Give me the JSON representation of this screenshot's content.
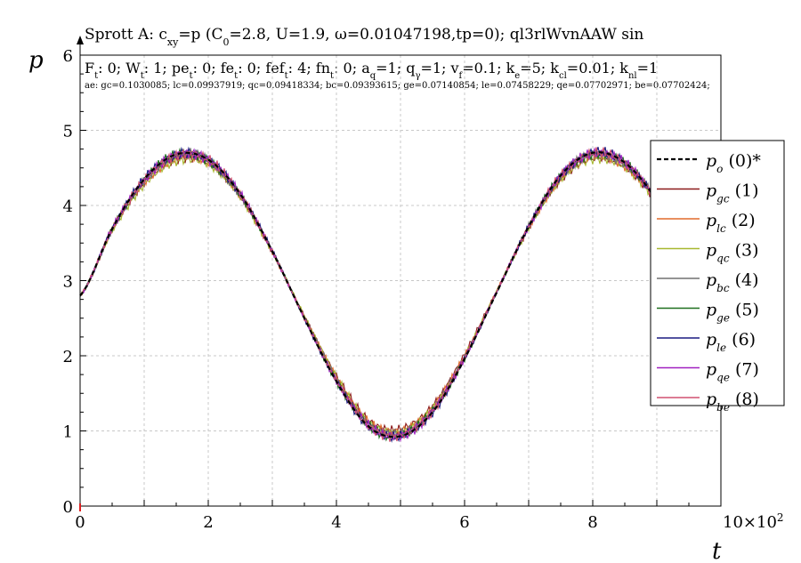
{
  "header": {
    "title": "Sprott A: c_xy=p (C_0=2.8, U=1.9, ω=0.01047198,tp=0); ql3rlWvnAAW sin",
    "params": "F_t: 0; W_t: 1; pe_t: 0; fe_t: 0; fef_t: 4; fn_t: 0; a_q=1; q_γ=1; v_f=0.1; k_e=5; k_cl=0.01; k_nl=1",
    "errors": "ae: gc=0.1030085; lc=0.09937919; qc=0.09418334; bc=0.09393615; ge=0.07140854; le=0.07458229; qe=0.07702971; be=0.07702424;"
  },
  "chart_data": {
    "type": "line",
    "xlabel": "t",
    "ylabel": "p",
    "x_multiplier": "10×10²",
    "xlim": [
      0,
      10
    ],
    "ylim": [
      0,
      6
    ],
    "x_ticks": [
      "0",
      "2",
      "4",
      "6",
      "8"
    ],
    "y_ticks": [
      "0",
      "1",
      "2",
      "3",
      "4",
      "5",
      "6"
    ],
    "grid": true,
    "legend_position": "right",
    "x": [
      0,
      0.5,
      1.0,
      1.5,
      2.0,
      2.5,
      3.0,
      3.5,
      4.0,
      4.5,
      5.0,
      5.5,
      6.0,
      6.5,
      7.0,
      7.5,
      8.0,
      8.5,
      9.0,
      9.5,
      10.0
    ],
    "series": [
      {
        "name": "p_o (0)*",
        "sub": "o",
        "label": "(0)*",
        "color": "#000000",
        "dashed": true,
        "width": 2.2,
        "values": [
          2.8,
          3.69,
          4.35,
          4.68,
          4.61,
          4.15,
          3.39,
          2.5,
          1.66,
          1.06,
          0.93,
          1.25,
          1.96,
          2.84,
          3.72,
          4.4,
          4.7,
          4.57,
          4.07,
          3.32,
          2.45
        ]
      },
      {
        "name": "p_gc (1)",
        "sub": "gc",
        "label": "(1)",
        "color": "#8b1a1a",
        "values": [
          2.8,
          3.67,
          4.3,
          4.62,
          4.57,
          4.12,
          3.38,
          2.53,
          1.73,
          1.14,
          1.02,
          1.33,
          2.02,
          2.86,
          3.7,
          4.35,
          4.63,
          4.52,
          4.05,
          3.32,
          2.48
        ]
      },
      {
        "name": "p_lc (2)",
        "sub": "lc",
        "label": "(2)",
        "color": "#e06a2c",
        "values": [
          2.8,
          3.67,
          4.31,
          4.63,
          4.58,
          4.13,
          3.38,
          2.52,
          1.71,
          1.12,
          1.0,
          1.31,
          2.0,
          2.86,
          3.71,
          4.36,
          4.65,
          4.53,
          4.06,
          3.32,
          2.47
        ]
      },
      {
        "name": "p_qc (3)",
        "sub": "qc",
        "label": "(3)",
        "color": "#a8b830",
        "values": [
          2.8,
          3.66,
          4.28,
          4.59,
          4.55,
          4.11,
          3.38,
          2.53,
          1.72,
          1.12,
          0.98,
          1.28,
          1.99,
          2.86,
          3.7,
          4.34,
          4.62,
          4.51,
          4.05,
          3.33,
          2.48
        ]
      },
      {
        "name": "p_bc (4)",
        "sub": "bc",
        "label": "(4)",
        "color": "#707070",
        "values": [
          2.8,
          3.68,
          4.33,
          4.66,
          4.6,
          4.14,
          3.39,
          2.51,
          1.69,
          1.09,
          0.96,
          1.28,
          1.98,
          2.85,
          3.72,
          4.39,
          4.68,
          4.56,
          4.07,
          3.32,
          2.46
        ]
      },
      {
        "name": "p_ge (5)",
        "sub": "ge",
        "label": "(5)",
        "color": "#1e6e1e",
        "values": [
          2.8,
          3.69,
          4.34,
          4.67,
          4.6,
          4.14,
          3.39,
          2.5,
          1.67,
          1.07,
          0.94,
          1.26,
          1.97,
          2.84,
          3.72,
          4.39,
          4.69,
          4.56,
          4.07,
          3.32,
          2.45
        ]
      },
      {
        "name": "p_le (6)",
        "sub": "le",
        "label": "(6)",
        "color": "#1a1a80",
        "values": [
          2.8,
          3.69,
          4.35,
          4.68,
          4.61,
          4.15,
          3.39,
          2.5,
          1.66,
          1.06,
          0.93,
          1.25,
          1.96,
          2.84,
          3.72,
          4.4,
          4.7,
          4.57,
          4.07,
          3.32,
          2.45
        ]
      },
      {
        "name": "p_qe (7)",
        "sub": "qe",
        "label": "(7)",
        "color": "#a020c0",
        "values": [
          2.8,
          3.69,
          4.34,
          4.67,
          4.61,
          4.15,
          3.39,
          2.5,
          1.67,
          1.07,
          0.94,
          1.26,
          1.97,
          2.85,
          3.72,
          4.4,
          4.69,
          4.57,
          4.07,
          3.32,
          2.45
        ]
      },
      {
        "name": "p_be (8)",
        "sub": "be",
        "label": "(8)",
        "color": "#d05070",
        "values": [
          2.8,
          3.69,
          4.34,
          4.67,
          4.61,
          4.15,
          3.39,
          2.5,
          1.67,
          1.07,
          0.94,
          1.26,
          1.97,
          2.85,
          3.72,
          4.4,
          4.69,
          4.57,
          4.07,
          3.32,
          2.45
        ]
      }
    ]
  }
}
